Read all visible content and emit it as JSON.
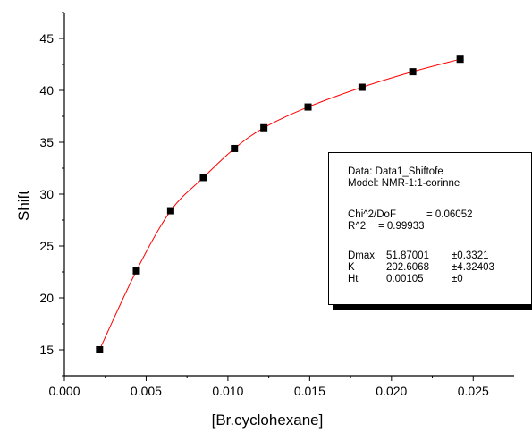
{
  "chart_data": {
    "type": "scatter",
    "xlabel": "[Br.cyclohexane]",
    "ylabel": "Shift",
    "xlim": [
      0.0,
      0.0275
    ],
    "ylim": [
      12.5,
      47.5
    ],
    "x_ticks": [
      0.0,
      0.005,
      0.01,
      0.015,
      0.02,
      0.025
    ],
    "x_tick_labels": [
      "0.000",
      "0.005",
      "0.010",
      "0.015",
      "0.020",
      "0.025"
    ],
    "y_ticks": [
      15,
      20,
      25,
      30,
      35,
      40,
      45
    ],
    "y_tick_labels": [
      "15",
      "20",
      "25",
      "30",
      "35",
      "40",
      "45"
    ],
    "series": [
      {
        "points": [
          {
            "x": 0.00215,
            "y": 15.0
          },
          {
            "x": 0.0044,
            "y": 22.6
          },
          {
            "x": 0.0065,
            "y": 28.4
          },
          {
            "x": 0.0085,
            "y": 31.6
          },
          {
            "x": 0.0104,
            "y": 34.4
          },
          {
            "x": 0.0122,
            "y": 36.4
          },
          {
            "x": 0.0149,
            "y": 38.4
          },
          {
            "x": 0.0182,
            "y": 40.3
          },
          {
            "x": 0.0213,
            "y": 41.8
          },
          {
            "x": 0.0242,
            "y": 43.0
          }
        ],
        "marker": "square",
        "marker_color": "#000000",
        "fit_line_color": "#ff0000"
      }
    ],
    "grid": false,
    "legend": "none"
  },
  "fit_box": {
    "data_line": "Data: Data1_Shiftofe",
    "model_line": "Model: NMR-1:1-corinne",
    "chi_label": "Chi^2/DoF",
    "chi_value": "= 0.06052",
    "r2_label": "R^2",
    "r2_value": "=  0.99933",
    "params": [
      {
        "name": "Dmax",
        "value": "51.87001",
        "error": "±0.3321"
      },
      {
        "name": "K",
        "value": "202.6068",
        "error": "±4.32403"
      },
      {
        "name": "Ht",
        "value": "0.00105",
        "error": "±0"
      }
    ]
  }
}
